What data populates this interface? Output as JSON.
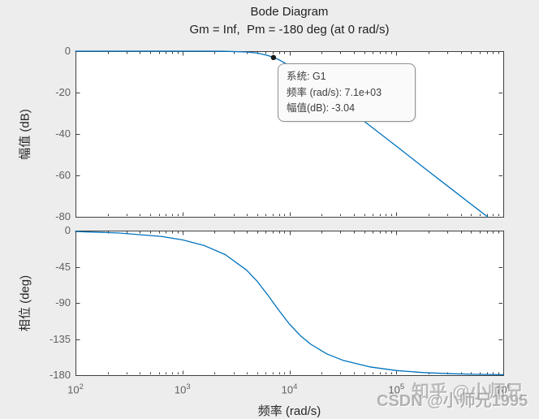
{
  "figure": {
    "title": "Bode Diagram",
    "subtitle": "Gm = Inf,  Pm = -180 deg (at 0 rad/s)",
    "background_color": "#ededed",
    "plot_background_color": "#ffffff",
    "axis_color": "#3f3f3f",
    "tick_label_color": "#606060",
    "curve_color": "#0072BD",
    "marker_color": "#1a1a1a"
  },
  "datatip": {
    "system_line": "系统: G1",
    "freq_line": "频率 (rad/s): 7.1e+03",
    "mag_line": "幅值(dB): -3.04"
  },
  "watermarks": {
    "zhihu": "知乎 @小师兄",
    "csdn": "CSDN @小师兄1995"
  },
  "chart_data": [
    {
      "type": "line",
      "subplot": "magnitude",
      "title": "Bode Diagram",
      "subtitle": "Gm = Inf,  Pm = -180 deg (at 0 rad/s)",
      "ylabel": "幅值 (dB)",
      "xscale": "log",
      "xlim_log10": [
        2,
        6
      ],
      "ylim": [
        -80,
        0
      ],
      "yticks": [
        0,
        -20,
        -40,
        -60,
        -80
      ],
      "xticks_log10": [
        2,
        3,
        4,
        5,
        6
      ],
      "show_x_tick_labels": false,
      "grid": false,
      "legend": "none",
      "series": [
        {
          "name": "G1",
          "color": "#0072BD",
          "x_log10": [
            2.0,
            2.4,
            2.8,
            3.0,
            3.2,
            3.4,
            3.6,
            3.7,
            3.8,
            3.851,
            3.9,
            4.0,
            4.1,
            4.2,
            4.35,
            4.5,
            4.75,
            5.0,
            5.25,
            5.5,
            5.75,
            5.853
          ],
          "y": [
            0,
            0,
            0,
            0,
            -0.01,
            -0.07,
            -0.41,
            -0.96,
            -2.1,
            -3.04,
            -4.09,
            -6.93,
            -10.37,
            -14.12,
            -20.0,
            -25.96,
            -35.9,
            -45.9,
            -55.95,
            -65.95,
            -75.95,
            -80
          ]
        }
      ],
      "datatip_point": {
        "series": "G1",
        "freq_rad_s": 7100,
        "x_log10": 3.851,
        "y_db": -3.04
      }
    },
    {
      "type": "line",
      "subplot": "phase",
      "xlabel": "频率 (rad/s)",
      "ylabel": "相位 (deg)",
      "xscale": "log",
      "xlim_log10": [
        2,
        6
      ],
      "ylim": [
        -180,
        0
      ],
      "yticks": [
        0,
        -45,
        -90,
        -135,
        -180
      ],
      "xticks_log10": [
        2,
        3,
        4,
        5,
        6
      ],
      "show_x_tick_labels": true,
      "grid": false,
      "legend": "none",
      "series": [
        {
          "name": "G1",
          "color": "#0072BD",
          "x_log10": [
            2.0,
            2.4,
            2.8,
            3.0,
            3.2,
            3.4,
            3.6,
            3.7,
            3.8,
            3.851,
            3.9,
            4.0,
            4.1,
            4.2,
            4.35,
            4.5,
            4.75,
            5.0,
            5.25,
            5.5,
            5.75,
            6.0
          ],
          "y": [
            -1.1,
            -2.9,
            -7.2,
            -11.5,
            -18.4,
            -29.8,
            -49.2,
            -63.3,
            -80.5,
            -90,
            -99,
            -116.3,
            -130.5,
            -141.6,
            -153.5,
            -161.5,
            -169.7,
            -174.2,
            -176.8,
            -178.2,
            -179.0,
            -179.4
          ]
        }
      ]
    }
  ]
}
